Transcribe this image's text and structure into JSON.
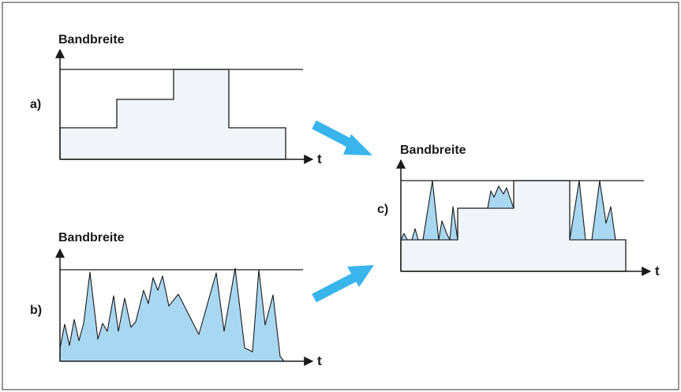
{
  "diagram": {
    "panel_a": {
      "label": "a)",
      "ylabel": "Bandbreite",
      "xlabel": "t"
    },
    "panel_b": {
      "label": "b)",
      "ylabel": "Bandbreite",
      "xlabel": "t"
    },
    "panel_c": {
      "label": "c)",
      "ylabel": "Bandbreite",
      "xlabel": "t"
    }
  },
  "colors": {
    "block_fill": "#f1f5fa",
    "burst_fill": "#a9d7f2",
    "arrow": "#3ab4ec",
    "line": "#1a1a1a"
  }
}
